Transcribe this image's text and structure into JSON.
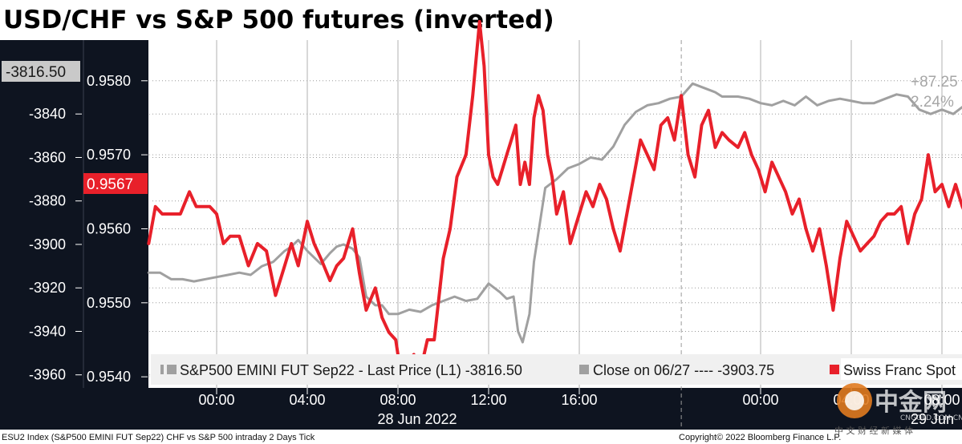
{
  "title": "USD/CHF vs S&P 500 futures (inverted)",
  "footer": {
    "left": "ESU2 Index (S&P500 EMINI FUT  Sep22) CHF vs S&P 500 intraday 2 Days  Tick",
    "right": "Copyright© 2022 Bloomberg Finance L.P."
  },
  "watermark": {
    "main": "中金网",
    "sub": "CNGOLD.COM.CN",
    "tag": "中 文 财 经 新 媒 体"
  },
  "colors": {
    "red": "#e8202a",
    "gray": "#a0a0a0",
    "axis_bg": "#0e1420",
    "legend_bg": "#f0f0f0"
  },
  "chart_data": {
    "type": "line",
    "x_ticks": [
      "00:00",
      "04:00",
      "08:00",
      "12:00",
      "16:00",
      "00:00",
      "04:00",
      "08:00"
    ],
    "x_date_labels": [
      "28 Jun 2022",
      "29 Jun"
    ],
    "left_axis": {
      "ticks": [
        -3840,
        -3860,
        -3880,
        -3900,
        -3920,
        -3940,
        -3960
      ],
      "range": [
        -3966,
        -3806
      ]
    },
    "right_axis": {
      "ticks": [
        0.958,
        0.957,
        0.956,
        0.955,
        0.954
      ],
      "range": [
        0.95385,
        0.95855
      ]
    },
    "left_axis_labels": [
      "-3840",
      "-3860",
      "-3880",
      "-3900",
      "-3920",
      "-3940",
      "-3960"
    ],
    "right_axis_labels": [
      "0.9580",
      "0.9570",
      "0.9560",
      "0.9550",
      "0.9540"
    ],
    "last_left": "-3816.50",
    "last_right": "0.9567",
    "change_labels": [
      "+87.25",
      "2.24%"
    ],
    "legend": [
      "S&P500 EMINI FUT Sep22 - Last Price (L1) -3816.50",
      "Close on 06/27 ---- -3903.75",
      "Swiss Franc Spot"
    ],
    "series": [
      {
        "name": "S&P500 EMINI FUT Sep22 - Last Price (L1) -3816.50",
        "axis": "left",
        "x": [
          -3.0,
          -2.5,
          -2.0,
          -1.5,
          -1.0,
          0,
          0.5,
          1.0,
          1.5,
          2.0,
          2.5,
          3.0,
          3.3,
          3.6,
          4.0,
          4.3,
          4.6,
          5.0,
          5.3,
          5.6,
          6.0,
          6.3,
          6.6,
          7.0,
          7.3,
          7.6,
          8.0,
          8.5,
          9.0,
          9.5,
          10.0,
          10.5,
          11.0,
          11.5,
          12.0,
          12.5,
          12.8,
          13.1,
          13.3,
          13.5,
          13.8,
          14.0,
          14.5,
          15.0,
          15.5,
          16.0,
          16.5,
          17.0,
          17.5,
          18.0,
          18.5,
          19.0,
          19.5,
          20.0,
          20.5,
          21.0,
          21.5,
          22.0,
          22.3,
          22.6,
          23.0,
          23.5,
          24.0,
          24.5,
          25.0,
          25.5,
          26.0,
          26.5,
          27.0,
          27.5,
          28.0,
          28.5,
          29.0,
          29.5,
          30.0,
          30.5,
          31.0,
          31.5,
          32.0,
          32.5,
          33.0,
          33.5,
          34.0,
          34.5
        ],
        "y": [
          -3913,
          -3913,
          -3916,
          -3916,
          -3917,
          -3915,
          -3914,
          -3913,
          -3914,
          -3910,
          -3908,
          -3903,
          -3901,
          -3898,
          -3903,
          -3906,
          -3909,
          -3904,
          -3901,
          -3900,
          -3902,
          -3906,
          -3924,
          -3928,
          -3928,
          -3932,
          -3932,
          -3930,
          -3931,
          -3928,
          -3926,
          -3924,
          -3926,
          -3925,
          -3918,
          -3922,
          -3925,
          -3924,
          -3940,
          -3945,
          -3932,
          -3908,
          -3874,
          -3870,
          -3865,
          -3863,
          -3860,
          -3861,
          -3855,
          -3845,
          -3839,
          -3836,
          -3835,
          -3833,
          -3832,
          -3826,
          -3828,
          -3830,
          -3832,
          -3832,
          -3832,
          -3833,
          -3835,
          -3836,
          -3834,
          -3836,
          -3832,
          -3836,
          -3834,
          -3833,
          -3834,
          -3835,
          -3835,
          -3833,
          -3831,
          -3832,
          -3838,
          -3840,
          -3838,
          -3840,
          -3836,
          -3832,
          -3825,
          -3820
        ]
      },
      {
        "name": "Swiss Franc Spot",
        "axis": "right",
        "x": [
          -3.0,
          -2.7,
          -2.4,
          -2.0,
          -1.6,
          -1.2,
          -0.9,
          -0.6,
          -0.3,
          0,
          0.3,
          0.6,
          1.0,
          1.4,
          1.8,
          2.2,
          2.6,
          3.0,
          3.3,
          3.6,
          4.0,
          4.3,
          4.6,
          5.0,
          5.3,
          5.6,
          6.0,
          6.3,
          6.6,
          7.0,
          7.3,
          7.6,
          7.9,
          8.1,
          8.4,
          8.7,
          9.0,
          9.3,
          9.6,
          10.0,
          10.3,
          10.6,
          11.0,
          11.3,
          11.6,
          11.8,
          12.0,
          12.2,
          12.4,
          12.6,
          12.8,
          13.0,
          13.2,
          13.4,
          13.6,
          13.8,
          14.0,
          14.2,
          14.4,
          14.6,
          14.8,
          15.0,
          15.3,
          15.6,
          16.0,
          16.3,
          16.6,
          16.9,
          17.2,
          17.5,
          17.8,
          18.1,
          18.4,
          18.7,
          19.0,
          19.3,
          19.6,
          19.9,
          20.2,
          20.5,
          20.8,
          21.1,
          21.4,
          21.7,
          22.0,
          22.3,
          22.6,
          23.0,
          23.3,
          23.6,
          23.9,
          24.2,
          24.5,
          24.8,
          25.1,
          25.4,
          25.7,
          26.0,
          26.3,
          26.6,
          26.9,
          27.2,
          27.5,
          27.8,
          28.1,
          28.4,
          28.7,
          29.0,
          29.3,
          29.6,
          29.9,
          30.2,
          30.5,
          30.8,
          31.1,
          31.4,
          31.7,
          32.0,
          32.3,
          32.6,
          32.9,
          33.2,
          33.5,
          33.8,
          34.1,
          34.4,
          34.7,
          35.0
        ],
        "y": [
          0.9558,
          0.9563,
          0.9562,
          0.9562,
          0.9562,
          0.9565,
          0.9563,
          0.9563,
          0.9563,
          0.9562,
          0.9558,
          0.9559,
          0.9559,
          0.9555,
          0.9558,
          0.9557,
          0.9551,
          0.9555,
          0.9558,
          0.9555,
          0.9561,
          0.9558,
          0.9556,
          0.9553,
          0.9555,
          0.9556,
          0.956,
          0.9554,
          0.9549,
          0.9552,
          0.9548,
          0.9546,
          0.9545,
          0.9541,
          0.9542,
          0.9543,
          0.9541,
          0.9545,
          0.9545,
          0.9556,
          0.956,
          0.9567,
          0.957,
          0.9578,
          0.9588,
          0.9582,
          0.957,
          0.9567,
          0.9566,
          0.9568,
          0.957,
          0.9572,
          0.9574,
          0.9566,
          0.9569,
          0.9566,
          0.9575,
          0.9578,
          0.9576,
          0.957,
          0.9567,
          0.9562,
          0.9565,
          0.9558,
          0.9562,
          0.9565,
          0.9563,
          0.9566,
          0.9564,
          0.956,
          0.9557,
          0.9562,
          0.9567,
          0.9572,
          0.957,
          0.9568,
          0.9574,
          0.9575,
          0.9572,
          0.9578,
          0.957,
          0.9567,
          0.9574,
          0.9576,
          0.9571,
          0.9573,
          0.9572,
          0.9571,
          0.9573,
          0.957,
          0.9568,
          0.9565,
          0.9569,
          0.9567,
          0.9565,
          0.9562,
          0.9564,
          0.956,
          0.9557,
          0.956,
          0.9555,
          0.9549,
          0.9556,
          0.9561,
          0.9559,
          0.9557,
          0.9558,
          0.9559,
          0.9561,
          0.9562,
          0.9562,
          0.9563,
          0.9558,
          0.9562,
          0.9564,
          0.957,
          0.9565,
          0.9566,
          0.9563,
          0.9566,
          0.9563,
          0.9561,
          0.9567,
          0.9565,
          0.9562,
          0.9567,
          0.9566,
          0.9567
        ]
      }
    ]
  }
}
